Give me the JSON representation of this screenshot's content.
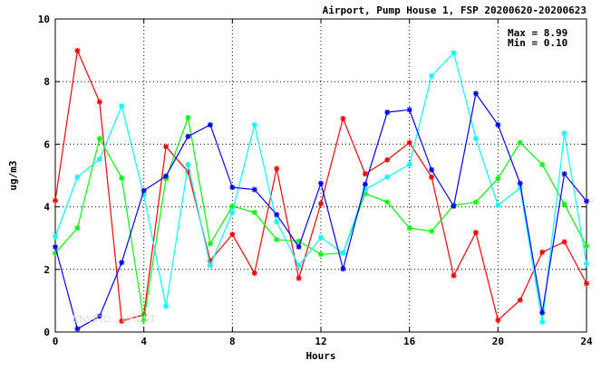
{
  "chart_data": {
    "type": "line",
    "title": "Airport, Pump House 1, FSP 20200620-20200623",
    "xlabel": "Hours",
    "ylabel": "ug/m3",
    "xlim": [
      0,
      24
    ],
    "ylim": [
      0,
      10
    ],
    "xticks": [
      0,
      4,
      8,
      12,
      16,
      20,
      24
    ],
    "yticks": [
      0,
      2,
      4,
      6,
      8,
      10
    ],
    "grid": true,
    "annotations": [
      "Max = 8.99",
      "Min = 0.10"
    ],
    "watermark": "ENVIRO... HKUST",
    "x": [
      0,
      1,
      2,
      3,
      4,
      5,
      6,
      7,
      8,
      9,
      10,
      11,
      12,
      13,
      14,
      15,
      16,
      17,
      18,
      19,
      20,
      21,
      22,
      23,
      24
    ],
    "series": [
      {
        "color": "#ff0000",
        "values": [
          4.2,
          8.99,
          7.35,
          0.35,
          0.55,
          5.92,
          5.12,
          2.28,
          3.12,
          1.88,
          5.22,
          1.72,
          4.1,
          6.82,
          5.05,
          5.5,
          6.05,
          4.95,
          1.8,
          3.18,
          0.38,
          1.02,
          2.55,
          2.88,
          1.55
        ]
      },
      {
        "color": "#00ff00",
        "values": [
          2.52,
          3.32,
          6.18,
          4.92,
          0.38,
          4.9,
          6.85,
          2.82,
          4.02,
          3.82,
          2.95,
          2.9,
          2.48,
          2.52,
          4.42,
          4.15,
          3.32,
          3.22,
          4.05,
          4.15,
          4.9,
          6.05,
          5.35,
          4.08,
          2.75
        ]
      },
      {
        "color": "#00ffff",
        "values": [
          3.05,
          4.95,
          5.52,
          7.22,
          4.38,
          0.82,
          5.35,
          2.12,
          3.82,
          6.62,
          3.52,
          2.12,
          3.02,
          2.52,
          4.55,
          4.95,
          5.35,
          8.18,
          8.92,
          6.18,
          4.05,
          4.6,
          0.32,
          6.35,
          2.18
        ]
      },
      {
        "color": "#0000ff",
        "values": [
          2.72,
          0.1,
          0.5,
          2.22,
          4.52,
          4.98,
          6.25,
          6.62,
          4.62,
          4.55,
          3.75,
          2.72,
          4.75,
          2.02,
          4.72,
          7.02,
          7.1,
          5.18,
          4.02,
          7.62,
          6.62,
          4.75,
          0.62,
          5.05,
          4.18
        ]
      }
    ]
  }
}
